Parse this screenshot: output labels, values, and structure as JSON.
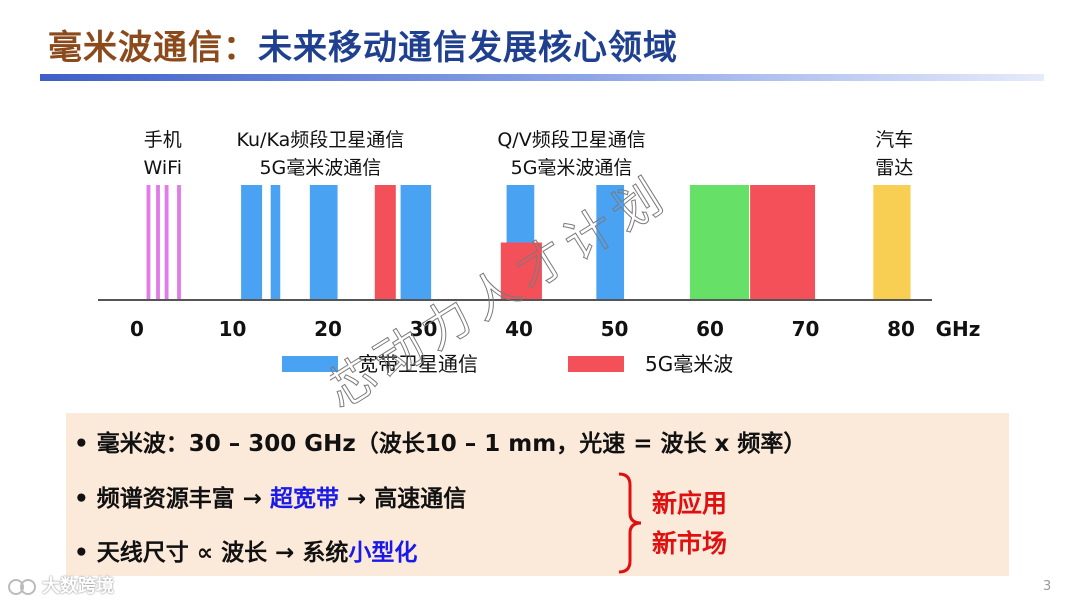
{
  "slide": {
    "title_part1": "毫米波通信：",
    "title_part2": "未来移动通信发展核心领域",
    "page_number": "3"
  },
  "chart_data": {
    "type": "bar",
    "x_unit": "GHz",
    "xlim": [
      0,
      80
    ],
    "x_ticks": [
      0,
      10,
      20,
      30,
      40,
      50,
      60,
      70,
      80
    ],
    "bands": [
      {
        "start": 1.0,
        "end": 1.4,
        "height": 1.0,
        "color": "#E07BE8"
      },
      {
        "start": 2.0,
        "end": 2.4,
        "height": 1.0,
        "color": "#E07BE8"
      },
      {
        "start": 2.9,
        "end": 3.3,
        "height": 1.0,
        "color": "#E07BE8"
      },
      {
        "start": 4.2,
        "end": 4.6,
        "height": 1.0,
        "color": "#E07BE8"
      },
      {
        "start": 10.9,
        "end": 13.1,
        "height": 1.0,
        "color": "#4AA3F2"
      },
      {
        "start": 14.0,
        "end": 15.0,
        "height": 1.0,
        "color": "#4AA3F2"
      },
      {
        "start": 18.1,
        "end": 21.0,
        "height": 1.0,
        "color": "#4AA3F2"
      },
      {
        "start": 24.9,
        "end": 27.1,
        "height": 1.0,
        "color": "#F4505A"
      },
      {
        "start": 27.6,
        "end": 30.8,
        "height": 1.0,
        "color": "#4AA3F2"
      },
      {
        "start": 38.7,
        "end": 41.6,
        "height": 1.0,
        "color": "#4AA3F2"
      },
      {
        "start": 38.1,
        "end": 42.4,
        "height": 0.5,
        "color": "#F4505A"
      },
      {
        "start": 48.1,
        "end": 51.0,
        "height": 1.0,
        "color": "#4AA3F2"
      },
      {
        "start": 57.9,
        "end": 64.1,
        "height": 1.0,
        "color": "#66E066"
      },
      {
        "start": 64.2,
        "end": 71.0,
        "height": 1.0,
        "color": "#F4505A"
      },
      {
        "start": 77.1,
        "end": 81.0,
        "height": 1.0,
        "color": "#F8CF52"
      }
    ],
    "band_labels": [
      {
        "lines": [
          "手机",
          "WiFi"
        ],
        "center": 2.7
      },
      {
        "lines": [
          "Ku/Ka频段卫星通信",
          "5G毫米波通信"
        ],
        "center": 19.2
      },
      {
        "lines": [
          "Q/V频段卫星通信",
          "5G毫米波通信"
        ],
        "center": 45.5
      },
      {
        "lines": [
          "汽车",
          "雷达"
        ],
        "center": 79.3
      }
    ],
    "legend": [
      {
        "label": "宽带卫星通信",
        "color": "#4AA3F2"
      },
      {
        "label": "5G毫米波",
        "color": "#F4505A"
      }
    ],
    "legend_placement": "bottom",
    "grid": false
  },
  "bullets": {
    "b1": {
      "dot": "•",
      "text": "毫米波：30 – 300 GHz（波长10 – 1 mm，光速 = 波长 x 频率）"
    },
    "b2": {
      "dot": "•",
      "pre": "频谱资源丰富 → ",
      "hl": "超宽带",
      "post": " → 高速通信"
    },
    "b3": {
      "dot": "•",
      "pre": "天线尺寸 ∝ 波长 → 系统",
      "hl": "小型化"
    }
  },
  "outcome": {
    "line1": "新应用",
    "line2": "新市场"
  },
  "watermark": "芯动力人才计划",
  "brand": "大数跨境"
}
